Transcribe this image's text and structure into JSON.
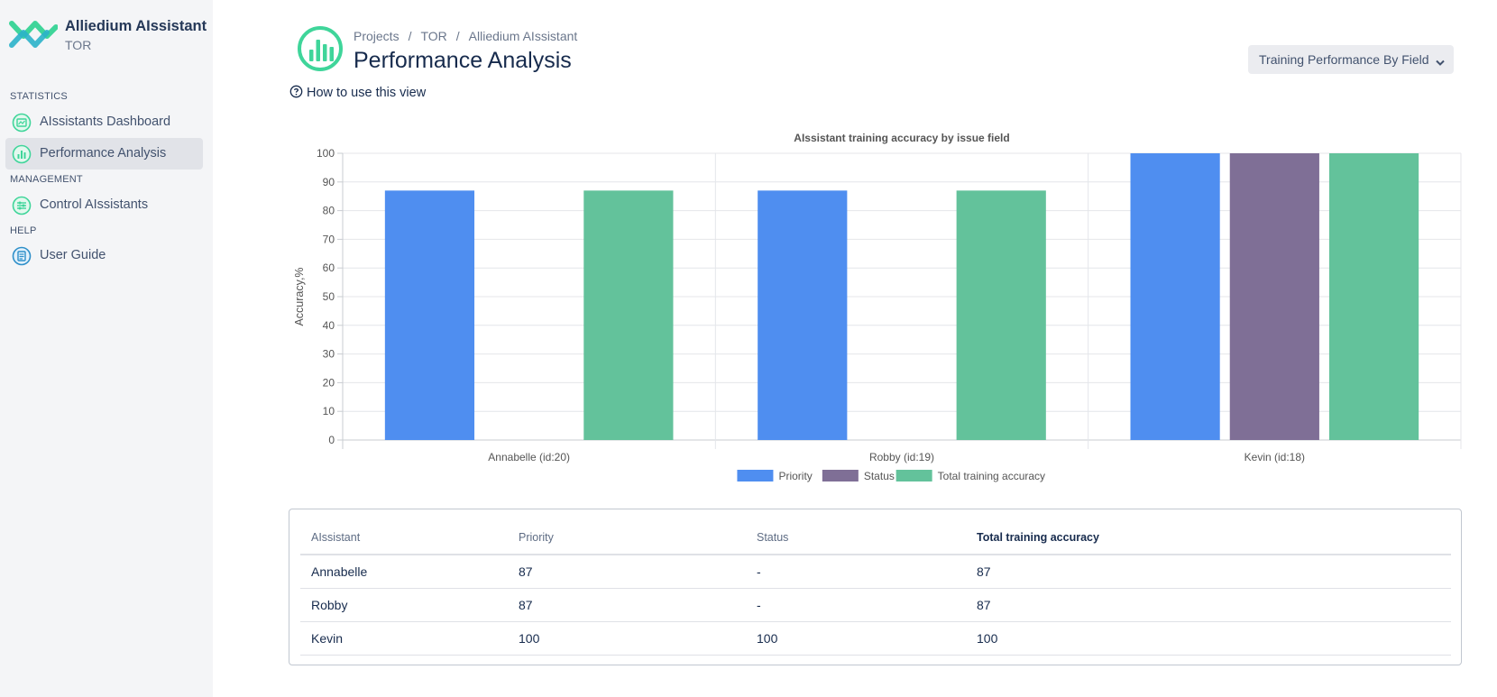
{
  "app": {
    "name": "Alliedium AIssistant",
    "project_key": "TOR"
  },
  "sidebar": {
    "sections": [
      {
        "label": "STATISTICS",
        "items": [
          {
            "label": "AIssistants Dashboard",
            "icon": "dashboard-icon"
          },
          {
            "label": "Performance Analysis",
            "icon": "bar-chart-icon",
            "active": true
          }
        ]
      },
      {
        "label": "MANAGEMENT",
        "items": [
          {
            "label": "Control AIssistants",
            "icon": "sliders-icon"
          }
        ]
      },
      {
        "label": "HELP",
        "items": [
          {
            "label": "User Guide",
            "icon": "document-icon"
          }
        ]
      }
    ]
  },
  "header": {
    "breadcrumb": [
      "Projects",
      "TOR",
      "Alliedium AIssistant"
    ],
    "breadcrumb_sep": "/",
    "title": "Performance Analysis",
    "help_link": "How to use this view",
    "view_select": "Training Performance By Field"
  },
  "colors": {
    "priority": "#4f8ef0",
    "status": "#7f6f96",
    "total": "#63c29b",
    "brand_green": "#3fd59a",
    "grid": "#e4e6ea"
  },
  "chart_data": {
    "type": "bar",
    "title": "AIssistant training accuracy by issue field",
    "ylabel": "Accuracy,%",
    "xlabel": "",
    "ylim": [
      0,
      100
    ],
    "yticks": [
      0,
      10,
      20,
      30,
      40,
      50,
      60,
      70,
      80,
      90,
      100
    ],
    "categories": [
      "Annabelle (id:20)",
      "Robby (id:19)",
      "Kevin (id:18)"
    ],
    "series": [
      {
        "name": "Priority",
        "values": [
          87,
          87,
          100
        ]
      },
      {
        "name": "Status",
        "values": [
          0,
          0,
          100
        ]
      },
      {
        "name": "Total training accuracy",
        "values": [
          87,
          87,
          100
        ]
      }
    ],
    "legend": "bottom",
    "grid": true
  },
  "table": {
    "headers": [
      "AIssistant",
      "Priority",
      "Status",
      "Total training accuracy"
    ],
    "rows": [
      [
        "Annabelle",
        "87",
        "-",
        "87"
      ],
      [
        "Robby",
        "87",
        "-",
        "87"
      ],
      [
        "Kevin",
        "100",
        "100",
        "100"
      ]
    ]
  }
}
